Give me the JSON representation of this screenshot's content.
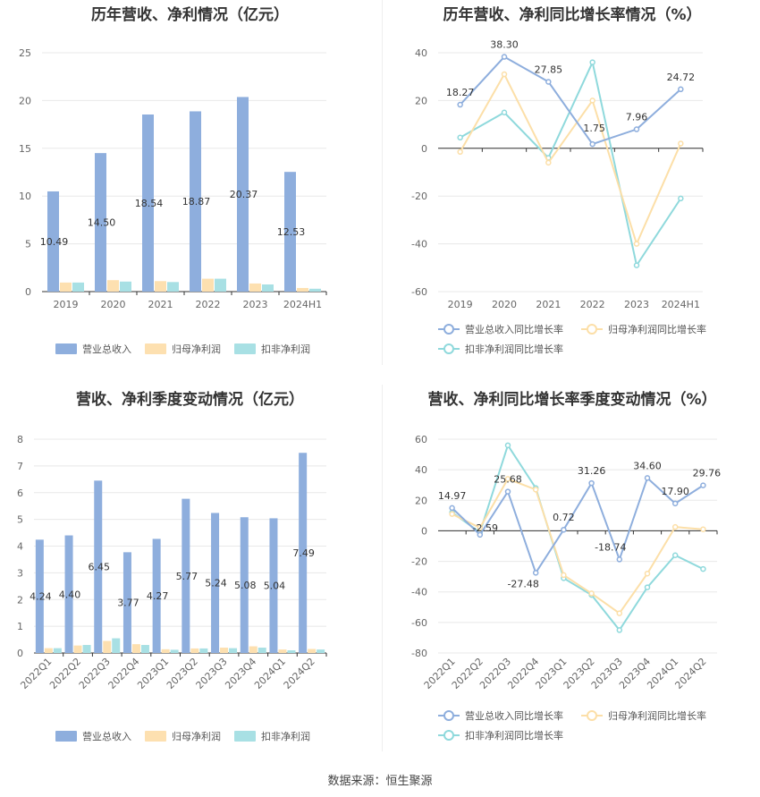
{
  "source": "数据来源：恒生聚源",
  "colors": {
    "revenue": "#8eaedd",
    "netprofit": "#fde0b0",
    "deducted": "#a8e0e4",
    "grid": "#e8e8e8",
    "rev_line": "#8eaedd",
    "np_line": "#fcdfa8",
    "ded_line": "#8fd9dc"
  },
  "legend_bar": [
    "营业总收入",
    "归母净利润",
    "扣非净利润"
  ],
  "legend_line": [
    "营业总收入同比增长率",
    "归母净利润同比增长率",
    "扣非净利润同比增长率"
  ],
  "chart_data": [
    {
      "type": "bar",
      "title": "历年营收、净利情况（亿元）",
      "categories": [
        "2019",
        "2020",
        "2021",
        "2022",
        "2023",
        "2024H1"
      ],
      "series": [
        {
          "name": "营业总收入",
          "values": [
            10.49,
            14.5,
            18.54,
            18.87,
            20.37,
            12.53
          ],
          "labels": [
            "10.49",
            "14.50",
            "18.54",
            "18.87",
            "20.37",
            "12.53"
          ]
        },
        {
          "name": "归母净利润",
          "values": [
            0.95,
            1.2,
            1.1,
            1.35,
            0.85,
            0.38
          ]
        },
        {
          "name": "扣非净利润",
          "values": [
            0.95,
            1.05,
            1.0,
            1.35,
            0.75,
            0.3
          ]
        }
      ],
      "ylim": [
        0,
        25
      ],
      "yticks": [
        "0",
        "5",
        "10",
        "15",
        "20",
        "25"
      ],
      "grid": true,
      "legend": "bottom"
    },
    {
      "type": "line",
      "title": "历年营收、净利同比增长率情况（%）",
      "categories": [
        "2019",
        "2020",
        "2021",
        "2022",
        "2023",
        "2024H1"
      ],
      "series": [
        {
          "name": "营业总收入同比增长率",
          "values": [
            18.27,
            38.3,
            27.85,
            1.75,
            7.96,
            24.72
          ],
          "labels": [
            "18.27",
            "38.30",
            "27.85",
            "1.75",
            "7.96",
            "24.72"
          ]
        },
        {
          "name": "归母净利润同比增长率",
          "values": [
            -1.5,
            31,
            -6,
            20,
            -40,
            2
          ]
        },
        {
          "name": "扣非净利润同比增长率",
          "values": [
            4.5,
            15,
            -4,
            36,
            -49,
            -21
          ]
        }
      ],
      "ylim": [
        -60,
        40
      ],
      "yticks": [
        "-60",
        "-40",
        "-20",
        "0",
        "20",
        "40"
      ],
      "grid": true,
      "legend": "bottom"
    },
    {
      "type": "bar",
      "title": "营收、净利季度变动情况（亿元）",
      "categories": [
        "2022Q1",
        "2022Q2",
        "2022Q3",
        "2022Q4",
        "2023Q1",
        "2023Q2",
        "2023Q3",
        "2023Q4",
        "2024Q1",
        "2024Q2"
      ],
      "series": [
        {
          "name": "营业总收入",
          "values": [
            4.24,
            4.4,
            6.45,
            3.77,
            4.27,
            5.77,
            5.24,
            5.08,
            5.04,
            7.49
          ],
          "labels": [
            "4.24",
            "4.40",
            "6.45",
            "3.77",
            "4.27",
            "5.77",
            "5.24",
            "5.08",
            "5.04",
            "7.49"
          ]
        },
        {
          "name": "归母净利润",
          "values": [
            0.18,
            0.28,
            0.45,
            0.33,
            0.14,
            0.17,
            0.2,
            0.25,
            0.13,
            0.15
          ]
        },
        {
          "name": "扣非净利润",
          "values": [
            0.18,
            0.3,
            0.55,
            0.3,
            0.12,
            0.17,
            0.18,
            0.2,
            0.1,
            0.13
          ]
        }
      ],
      "ylim": [
        0,
        8
      ],
      "yticks": [
        "0",
        "1",
        "2",
        "3",
        "4",
        "5",
        "6",
        "7",
        "8"
      ],
      "grid": true,
      "legend": "bottom"
    },
    {
      "type": "line",
      "title": "营收、净利同比增长率季度变动情况（%）",
      "categories": [
        "2022Q1",
        "2022Q2",
        "2022Q3",
        "2022Q4",
        "2023Q1",
        "2023Q2",
        "2023Q3",
        "2023Q4",
        "2024Q1",
        "2024Q2"
      ],
      "series": [
        {
          "name": "营业总收入同比增长率",
          "values": [
            14.97,
            -2.59,
            25.68,
            -27.48,
            0.72,
            31.26,
            -18.74,
            34.6,
            17.9,
            29.76
          ],
          "labels": [
            "14.97",
            "-2.59",
            "25.68",
            "-27.48",
            "0.72",
            "31.26",
            "-18.74",
            "34.60",
            "17.90",
            "29.76"
          ]
        },
        {
          "name": "归母净利润同比增长率",
          "values": [
            11,
            2,
            34,
            27,
            -29,
            -41,
            -54,
            -28,
            2.5,
            1
          ]
        },
        {
          "name": "扣非净利润同比增长率",
          "values": [
            12,
            -1,
            56,
            28,
            -31,
            -42,
            -65,
            -37,
            -16,
            -25
          ]
        }
      ],
      "ylim": [
        -80,
        60
      ],
      "yticks": [
        "-80",
        "-60",
        "-40",
        "-20",
        "0",
        "20",
        "40",
        "60"
      ],
      "grid": true,
      "legend": "bottom"
    }
  ]
}
